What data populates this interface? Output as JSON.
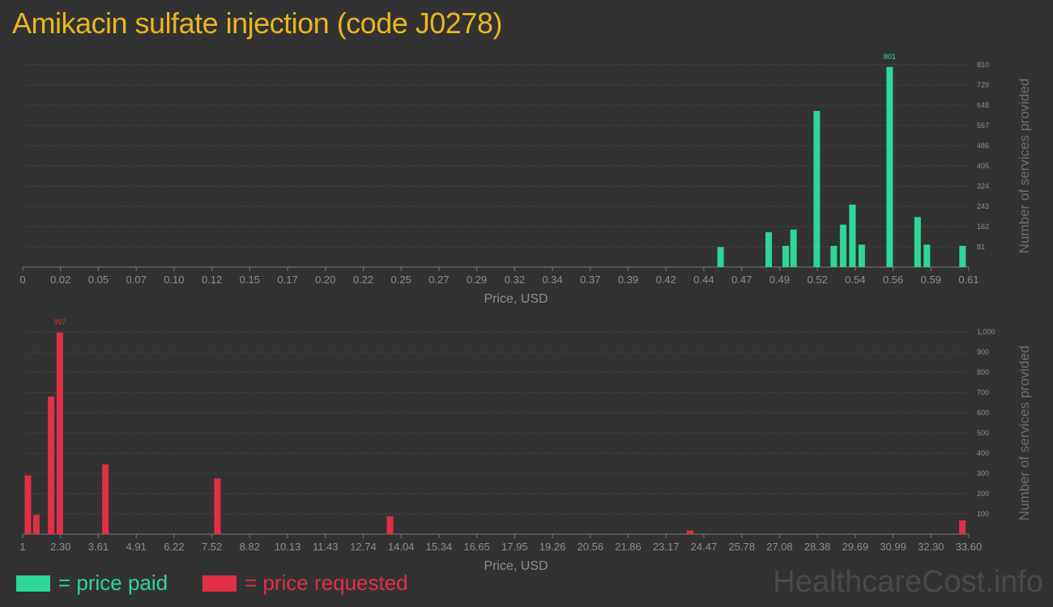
{
  "title": "Amikacin sulfate injection (code J0278)",
  "watermark": "HealthcareCost.info",
  "legend": {
    "paid": "= price paid",
    "requested": "= price requested"
  },
  "colors": {
    "paid": "#2ed798",
    "requested": "#df3045",
    "title": "#e8b61e",
    "background": "#323232"
  },
  "chart_data": [
    {
      "type": "bar",
      "name": "paid",
      "xlabel": "Price, USD",
      "ylabel": "Number of services provided",
      "xlim": [
        0,
        0.61
      ],
      "ylim": [
        0,
        810
      ],
      "x_ticks": [
        "0",
        "0.02",
        "0.05",
        "0.07",
        "0.10",
        "0.12",
        "0.15",
        "0.17",
        "0.20",
        "0.22",
        "0.25",
        "0.27",
        "0.29",
        "0.32",
        "0.34",
        "0.37",
        "0.39",
        "0.42",
        "0.44",
        "0.47",
        "0.49",
        "0.52",
        "0.54",
        "0.56",
        "0.59",
        "0.61"
      ],
      "y_ticks": [
        "81",
        "162",
        "243",
        "324",
        "405",
        "486",
        "567",
        "648",
        "729",
        "810"
      ],
      "peak_label": "801",
      "bars": [
        {
          "x": 0.45,
          "y": 80
        },
        {
          "x": 0.481,
          "y": 140
        },
        {
          "x": 0.492,
          "y": 85
        },
        {
          "x": 0.497,
          "y": 150
        },
        {
          "x": 0.512,
          "y": 625
        },
        {
          "x": 0.523,
          "y": 85
        },
        {
          "x": 0.529,
          "y": 170
        },
        {
          "x": 0.535,
          "y": 250
        },
        {
          "x": 0.541,
          "y": 90
        },
        {
          "x": 0.559,
          "y": 801
        },
        {
          "x": 0.577,
          "y": 200
        },
        {
          "x": 0.583,
          "y": 90
        },
        {
          "x": 0.606,
          "y": 85
        }
      ]
    },
    {
      "type": "bar",
      "name": "requested",
      "xlabel": "Price, USD",
      "ylabel": "Number of services provided",
      "xlim": [
        1,
        33.6
      ],
      "ylim": [
        0,
        1000
      ],
      "x_ticks": [
        "1",
        "2.30",
        "3.61",
        "4.91",
        "6.22",
        "7.52",
        "8.82",
        "10.13",
        "11.43",
        "12.74",
        "14.04",
        "15.34",
        "16.65",
        "17.95",
        "19.26",
        "20.56",
        "21.86",
        "23.17",
        "24.47",
        "25.78",
        "27.08",
        "28.38",
        "29.69",
        "30.99",
        "32.30",
        "33.60"
      ],
      "y_ticks": [
        "100",
        "200",
        "300",
        "400",
        "500",
        "600",
        "700",
        "800",
        "900",
        "1,000"
      ],
      "peak_label": "997",
      "bars": [
        {
          "x": 1.18,
          "y": 290
        },
        {
          "x": 1.47,
          "y": 95
        },
        {
          "x": 1.98,
          "y": 680
        },
        {
          "x": 2.28,
          "y": 997
        },
        {
          "x": 3.85,
          "y": 345
        },
        {
          "x": 7.71,
          "y": 275
        },
        {
          "x": 13.66,
          "y": 88
        },
        {
          "x": 24.0,
          "y": 18
        },
        {
          "x": 33.38,
          "y": 68
        }
      ]
    }
  ]
}
